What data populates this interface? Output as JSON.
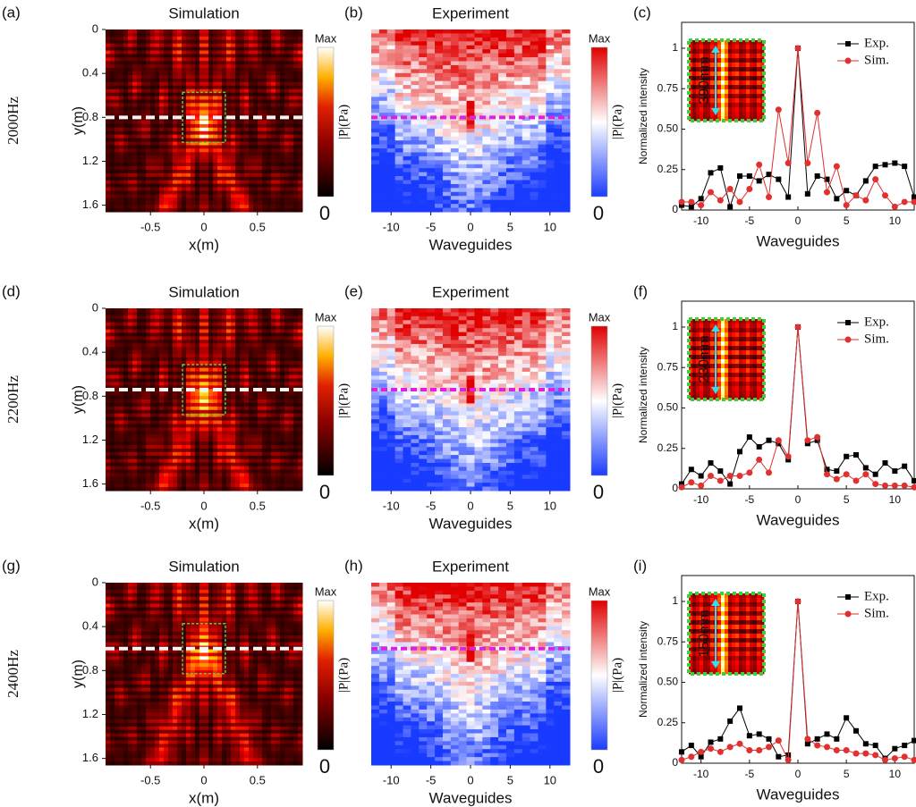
{
  "chart_data": [
    {
      "type": "heatmap",
      "variant": "simulation",
      "panel_label": "(a)",
      "row_label": "2000Hz",
      "title": "Simulation",
      "x_label": "x(m)",
      "y_label": "y(m)",
      "xlim": [
        -0.92,
        0.92
      ],
      "ylim": [
        0,
        1.66
      ],
      "xticks": [
        -0.5,
        0,
        0.5
      ],
      "yticks": [
        0,
        0.4,
        0.8,
        1.2,
        1.6
      ],
      "colorbar_max_label": "Max",
      "colorbar_label": "|P|(Pa)",
      "colorbar_min_label": "0",
      "cut_y": 0.8
    },
    {
      "type": "heatmap",
      "variant": "experiment",
      "panel_label": "(b)",
      "title": "Experiment",
      "x_label": "Waveguides",
      "xlim": [
        -12.5,
        12.5
      ],
      "ylim": [
        0,
        1.66
      ],
      "xticks": [
        -10,
        -5,
        0,
        5,
        10
      ],
      "colorbar_max_label": "Max",
      "colorbar_label": "|P|(Pa)",
      "colorbar_min_label": "0",
      "cut_y": 0.8
    },
    {
      "type": "line",
      "panel_label": "(c)",
      "x_label": "Waveguides",
      "y_label": "Normalized intensity",
      "inset_label": "390mm",
      "xlim": [
        -12,
        12
      ],
      "ylim": [
        0,
        1.16
      ],
      "xticks": [
        -10,
        -5,
        0,
        5,
        10
      ],
      "yticks": [
        0,
        0.25,
        {
          "value": 0.5,
          "label": "0.50"
        },
        0.75,
        1
      ],
      "x": [
        -12,
        -11,
        -10,
        -9,
        -8,
        -7,
        -6,
        -5,
        -4,
        -3,
        -2,
        -1,
        0,
        1,
        2,
        3,
        4,
        5,
        6,
        7,
        8,
        9,
        10,
        11,
        12
      ],
      "series": [
        {
          "name": "Exp.",
          "color": "#000000",
          "marker": "square",
          "values": [
            0.03,
            0.02,
            0.07,
            0.23,
            0.26,
            0.02,
            0.21,
            0.21,
            0.18,
            0.22,
            0.19,
            0.08,
            1.0,
            0.1,
            0.21,
            0.19,
            0.07,
            0.12,
            0.09,
            0.18,
            0.27,
            0.28,
            0.29,
            0.27,
            0.08
          ]
        },
        {
          "name": "Sim.",
          "color": "#e0302f",
          "marker": "circle",
          "values": [
            0.05,
            0.05,
            0.03,
            0.11,
            0.06,
            0.13,
            0.05,
            0.13,
            0.28,
            0.08,
            0.62,
            0.29,
            1.0,
            0.29,
            0.6,
            0.11,
            0.27,
            0.03,
            0.09,
            0.06,
            0.19,
            0.09,
            0.02,
            0.05,
            0.05
          ]
        }
      ]
    },
    {
      "type": "heatmap",
      "variant": "simulation",
      "panel_label": "(d)",
      "row_label": "2200Hz",
      "title": "Simulation",
      "x_label": "x(m)",
      "y_label": "y(m)",
      "xlim": [
        -0.92,
        0.92
      ],
      "ylim": [
        0,
        1.66
      ],
      "xticks": [
        -0.5,
        0,
        0.5
      ],
      "yticks": [
        0,
        0.4,
        0.8,
        1.2,
        1.6
      ],
      "colorbar_max_label": "Max",
      "colorbar_label": "|P|(Pa)",
      "colorbar_min_label": "0",
      "cut_y": 0.74
    },
    {
      "type": "heatmap",
      "variant": "experiment",
      "panel_label": "(e)",
      "title": "Experiment",
      "x_label": "Waveguides",
      "xlim": [
        -12.5,
        12.5
      ],
      "ylim": [
        0,
        1.66
      ],
      "xticks": [
        -10,
        -5,
        0,
        5,
        10
      ],
      "colorbar_max_label": "Max",
      "colorbar_label": "|P|(Pa)",
      "colorbar_min_label": "0",
      "cut_y": 0.74
    },
    {
      "type": "line",
      "panel_label": "(f)",
      "x_label": "Waveguides",
      "y_label": "Normalized intensity",
      "inset_label": "230mm",
      "xlim": [
        -12,
        12
      ],
      "ylim": [
        0,
        1.16
      ],
      "xticks": [
        -10,
        -5,
        0,
        5,
        10
      ],
      "yticks": [
        0,
        0.25,
        {
          "value": 0.5,
          "label": "0.50"
        },
        0.75,
        1
      ],
      "x": [
        -12,
        -11,
        -10,
        -9,
        -8,
        -7,
        -6,
        -5,
        -4,
        -3,
        -2,
        -1,
        0,
        1,
        2,
        3,
        4,
        5,
        6,
        7,
        8,
        9,
        10,
        11,
        12
      ],
      "series": [
        {
          "name": "Exp.",
          "color": "#000000",
          "marker": "square",
          "values": [
            0.03,
            0.12,
            0.08,
            0.16,
            0.11,
            0.03,
            0.23,
            0.32,
            0.26,
            0.3,
            0.28,
            0.18,
            1.0,
            0.28,
            0.3,
            0.12,
            0.11,
            0.2,
            0.21,
            0.13,
            0.09,
            0.16,
            0.11,
            0.14,
            0.05
          ]
        },
        {
          "name": "Sim.",
          "color": "#e0302f",
          "marker": "circle",
          "values": [
            0.01,
            0.04,
            0.02,
            0.08,
            0.05,
            0.08,
            0.08,
            0.1,
            0.18,
            0.1,
            0.3,
            0.2,
            1.0,
            0.3,
            0.32,
            0.09,
            0.06,
            0.09,
            0.05,
            0.09,
            0.03,
            0.02,
            0.02,
            0.02,
            0.01
          ]
        }
      ]
    },
    {
      "type": "heatmap",
      "variant": "simulation",
      "panel_label": "(g)",
      "row_label": "2400Hz",
      "title": "Simulation",
      "x_label": "x(m)",
      "y_label": "y(m)",
      "xlim": [
        -0.92,
        0.92
      ],
      "ylim": [
        0,
        1.66
      ],
      "xticks": [
        -0.5,
        0,
        0.5
      ],
      "yticks": [
        0,
        0.4,
        0.8,
        1.2,
        1.6
      ],
      "colorbar_max_label": "Max",
      "colorbar_label": "|P|(Pa)",
      "colorbar_min_label": "0",
      "cut_y": 0.6
    },
    {
      "type": "heatmap",
      "variant": "experiment",
      "panel_label": "(h)",
      "title": "Experiment",
      "x_label": "Waveguides",
      "xlim": [
        -12.5,
        12.5
      ],
      "ylim": [
        0,
        1.66
      ],
      "xticks": [
        -10,
        -5,
        0,
        5,
        10
      ],
      "colorbar_max_label": "Max",
      "colorbar_label": "|P|(Pa)",
      "colorbar_min_label": "0",
      "cut_y": 0.6
    },
    {
      "type": "line",
      "panel_label": "(i)",
      "x_label": "Waveguides",
      "y_label": "Normalized intensity",
      "inset_label": "150mm",
      "xlim": [
        -12,
        12
      ],
      "ylim": [
        0,
        1.16
      ],
      "xticks": [
        -10,
        -5,
        0,
        5,
        10
      ],
      "yticks": [
        0,
        0.25,
        {
          "value": 0.5,
          "label": "0.50"
        },
        0.75,
        1
      ],
      "x": [
        -12,
        -11,
        -10,
        -9,
        -8,
        -7,
        -6,
        -5,
        -4,
        -3,
        -2,
        -1,
        0,
        1,
        2,
        3,
        4,
        5,
        6,
        7,
        8,
        9,
        10,
        11,
        12
      ],
      "series": [
        {
          "name": "Exp.",
          "color": "#000000",
          "marker": "square",
          "values": [
            0.07,
            0.11,
            0.04,
            0.13,
            0.15,
            0.26,
            0.34,
            0.17,
            0.18,
            0.15,
            0.04,
            0.05,
            1.0,
            0.12,
            0.15,
            0.18,
            0.15,
            0.28,
            0.2,
            0.12,
            0.11,
            0.03,
            0.09,
            0.11,
            0.14
          ]
        },
        {
          "name": "Sim.",
          "color": "#e0302f",
          "marker": "circle",
          "values": [
            0.02,
            0.04,
            0.07,
            0.09,
            0.07,
            0.1,
            0.12,
            0.08,
            0.08,
            0.1,
            0.14,
            0.02,
            1.0,
            0.15,
            0.11,
            0.1,
            0.08,
            0.08,
            0.06,
            0.06,
            0.05,
            0.02,
            0.03,
            0.04,
            0.02
          ]
        }
      ]
    }
  ]
}
